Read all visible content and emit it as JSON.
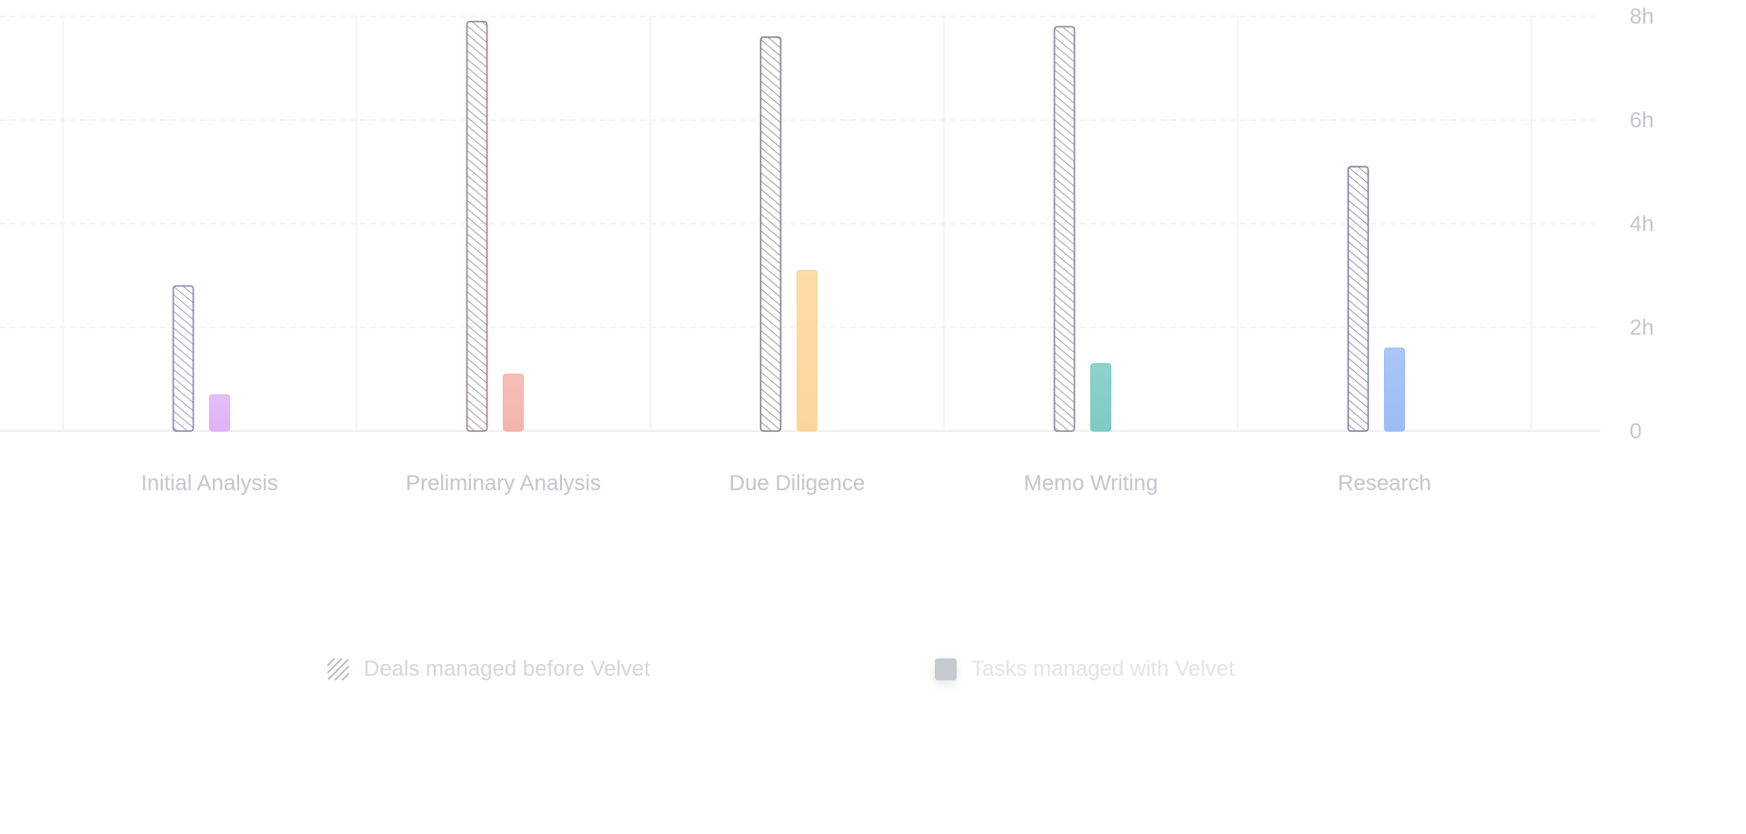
{
  "chart_data": {
    "type": "bar",
    "categories": [
      "Initial Analysis",
      "Preliminary Analysis",
      "Due Diligence",
      "Memo Writing",
      "Research"
    ],
    "series": [
      {
        "name": "Deals managed before Velvet",
        "values": [
          2.8,
          7.9,
          7.6,
          7.8,
          5.1
        ],
        "pattern": "hatched",
        "colors": [
          "#8e86b6",
          "#9a8590",
          "#868391",
          "#8b8a97",
          "#7c80a2"
        ]
      },
      {
        "name": "Tasks managed with Velvet",
        "values": [
          0.7,
          1.1,
          3.1,
          1.3,
          1.6
        ],
        "pattern": "solid",
        "colors": [
          "#e0b2f7",
          "#f4b4aa",
          "#fdd59b",
          "#7ccbc4",
          "#9cbcf5"
        ]
      }
    ],
    "y_ticks": [
      "0",
      "2h",
      "4h",
      "6h",
      "8h"
    ],
    "ylim": [
      0,
      8
    ],
    "y_axis_side": "right",
    "grid": true,
    "legend_position": "bottom",
    "colors": {
      "axis_text": "#c4c6d0",
      "category_text": "#c4c6cf",
      "grid": "#f0f0f3",
      "legend_text": "#d3d6de",
      "legend_swatch_solid": "#c6cad1"
    }
  }
}
